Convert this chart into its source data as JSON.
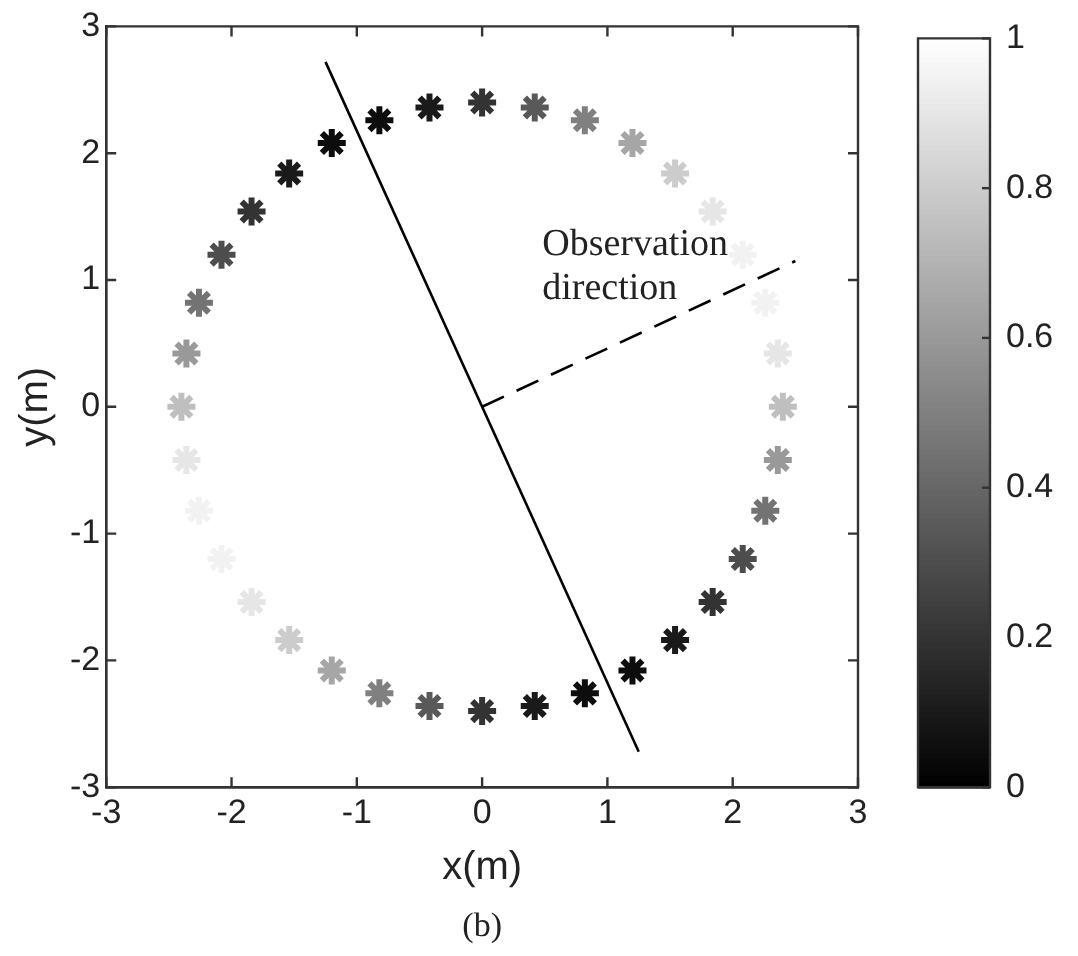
{
  "chart_data": {
    "type": "scatter",
    "xlabel": "x(m)",
    "ylabel": "y(m)",
    "xlim": [
      -3,
      3
    ],
    "ylim": [
      -3,
      3
    ],
    "xticks": [
      -3,
      -2,
      -1,
      0,
      1,
      2,
      3
    ],
    "yticks": [
      -3,
      -2,
      -1,
      0,
      1,
      2,
      3
    ],
    "clim": [
      0,
      1
    ],
    "cticks": [
      0,
      0.2,
      0.4,
      0.6,
      0.8,
      1
    ],
    "grid": false,
    "legend": false,
    "series": [
      {
        "type": "scatter",
        "marker": "cross",
        "x": [
          2.4,
          2.36,
          2.26,
          2.08,
          1.84,
          1.54,
          1.2,
          0.82,
          0.42,
          0,
          -0.42,
          -0.82,
          -1.2,
          -1.54,
          -1.84,
          -2.08,
          -2.26,
          -2.36,
          -2.4,
          -2.36,
          -2.26,
          -2.08,
          -1.84,
          -1.54,
          -1.2,
          -0.82,
          -0.42,
          0,
          0.42,
          0.82,
          1.2,
          1.54,
          1.84,
          2.08,
          2.26,
          2.36
        ],
        "values": [
          0,
          0.42,
          0.82,
          1.2,
          1.54,
          1.84,
          2.08,
          2.26,
          2.36,
          2.4,
          2.36,
          2.26,
          2.08,
          1.84,
          1.54,
          1.2,
          0.82,
          0.42,
          0,
          -0.42,
          -0.82,
          -1.2,
          -1.54,
          -1.84,
          -2.08,
          -2.26,
          -2.36,
          -2.4,
          -2.36,
          -2.26,
          -2.08,
          -1.84,
          -1.54,
          -1.2,
          -0.82,
          -0.42
        ],
        "colors": [
          "#bfbfbf",
          "#e6e6e6",
          "#f2f2f2",
          "#f2f2f2",
          "#e6e6e6",
          "#cccccc",
          "#a6a6a6",
          "#808080",
          "#595959",
          "#333333",
          "#1a1a1a",
          "#0d0d0d",
          "#0d0d0d",
          "#1a1a1a",
          "#333333",
          "#4d4d4d",
          "#737373",
          "#999999",
          "#bfbfbf",
          "#e6e6e6",
          "#f2f2f2",
          "#f2f2f2",
          "#e6e6e6",
          "#cccccc",
          "#a6a6a6",
          "#808080",
          "#595959",
          "#333333",
          "#1a1a1a",
          "#0d0d0d",
          "#0d0d0d",
          "#1a1a1a",
          "#333333",
          "#4d4d4d",
          "#737373",
          "#999999"
        ],
        "cvalues": [
          0.75,
          0.9,
          0.95,
          0.95,
          0.9,
          0.8,
          0.65,
          0.5,
          0.35,
          0.2,
          0.1,
          0.05,
          0.05,
          0.1,
          0.2,
          0.3,
          0.45,
          0.6,
          0.75,
          0.9,
          0.95,
          0.95,
          0.9,
          0.8,
          0.65,
          0.5,
          0.35,
          0.2,
          0.1,
          0.05,
          0.05,
          0.1,
          0.2,
          0.3,
          0.45,
          0.6
        ]
      },
      {
        "type": "line",
        "color": "#000000",
        "line_style": "solid",
        "x": [
          -1.25,
          1.25
        ],
        "values": [
          2.72,
          -2.72
        ]
      },
      {
        "type": "line",
        "color": "#000000",
        "line_style": "dashed",
        "x": [
          0,
          2.5
        ],
        "values": [
          0,
          1.15
        ]
      }
    ],
    "annotations": [
      "Observation direction",
      "(b)"
    ]
  }
}
